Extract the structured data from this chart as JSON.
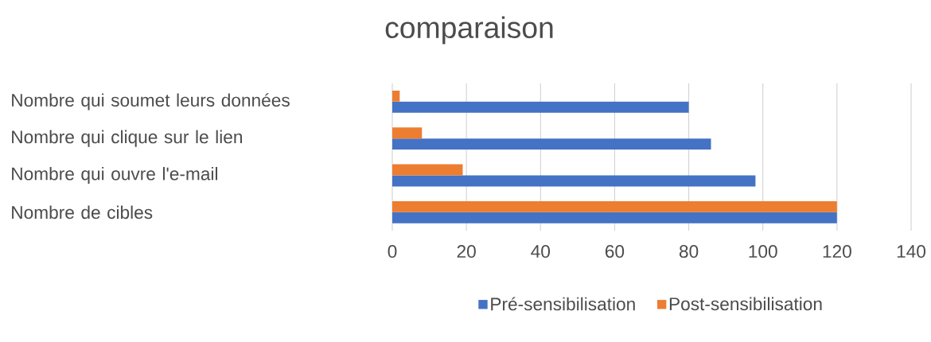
{
  "chart_data": {
    "type": "bar",
    "orientation": "horizontal",
    "title": "comparaison",
    "categories": [
      "Nombre qui soumet leurs données",
      "Nombre qui clique sur le lien",
      "Nombre qui ouvre l'e-mail",
      "Nombre de cibles"
    ],
    "series": [
      {
        "name": "Pré-sensibilisation",
        "color": "#4472c4",
        "values": [
          80,
          86,
          98,
          120
        ]
      },
      {
        "name": "Post-sensibilisation",
        "color": "#ed7d31",
        "values": [
          2,
          8,
          19,
          120
        ]
      }
    ],
    "xlim": [
      0,
      140
    ],
    "xticks": [
      0,
      20,
      40,
      60,
      80,
      100,
      120,
      140
    ],
    "grid": "x",
    "legend": "bottom"
  }
}
